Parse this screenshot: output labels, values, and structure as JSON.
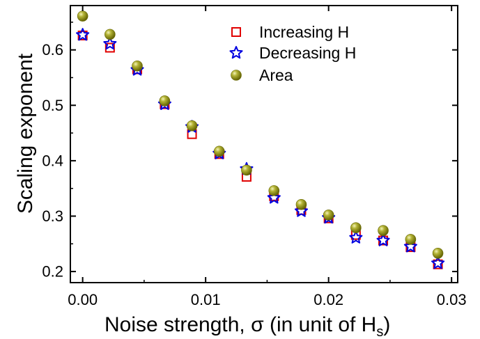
{
  "chart_data": {
    "type": "scatter",
    "xlabel": "Noise strength, σ (in unit of H",
    "xlabel_subscript": "s",
    "xlabel_suffix": ")",
    "ylabel": "Scaling exponent",
    "xlim": [
      -0.001,
      0.0305
    ],
    "ylim": [
      0.18,
      0.68
    ],
    "xticks": [
      0.0,
      0.01,
      0.02,
      0.03
    ],
    "xtick_labels": [
      "0.00",
      "0.01",
      "0.02",
      "0.03"
    ],
    "yticks": [
      0.2,
      0.3,
      0.4,
      0.5,
      0.6
    ],
    "ytick_labels": [
      "0.2",
      "0.3",
      "0.4",
      "0.5",
      "0.6"
    ],
    "grid": false,
    "legend_position": "top-right",
    "series": [
      {
        "name": "Increasing H",
        "marker": "open-square",
        "color": "#e00000",
        "x": [
          0.0,
          0.00222,
          0.00444,
          0.00667,
          0.00889,
          0.01111,
          0.01333,
          0.01556,
          0.01778,
          0.02,
          0.02222,
          0.02444,
          0.02667,
          0.02889
        ],
        "y": [
          0.626,
          0.604,
          0.565,
          0.502,
          0.448,
          0.412,
          0.371,
          0.336,
          0.311,
          0.296,
          0.266,
          0.256,
          0.244,
          0.213
        ]
      },
      {
        "name": "Decreasing H",
        "marker": "open-star",
        "color": "#0000e0",
        "x": [
          0.0,
          0.00222,
          0.00444,
          0.00667,
          0.00889,
          0.01111,
          0.01333,
          0.01556,
          0.01778,
          0.02,
          0.02222,
          0.02444,
          0.02667,
          0.02889
        ],
        "y": [
          0.627,
          0.611,
          0.564,
          0.502,
          0.461,
          0.413,
          0.385,
          0.333,
          0.309,
          0.297,
          0.261,
          0.256,
          0.245,
          0.215
        ]
      },
      {
        "name": "Area",
        "marker": "filled-sphere",
        "color": "#8a8a10",
        "x": [
          0.0,
          0.00222,
          0.00444,
          0.00667,
          0.00889,
          0.01111,
          0.01333,
          0.01556,
          0.01778,
          0.02,
          0.02222,
          0.02444,
          0.02667,
          0.02889
        ],
        "y": [
          0.661,
          0.628,
          0.571,
          0.508,
          0.463,
          0.417,
          0.383,
          0.346,
          0.321,
          0.302,
          0.279,
          0.274,
          0.258,
          0.233
        ]
      }
    ]
  }
}
